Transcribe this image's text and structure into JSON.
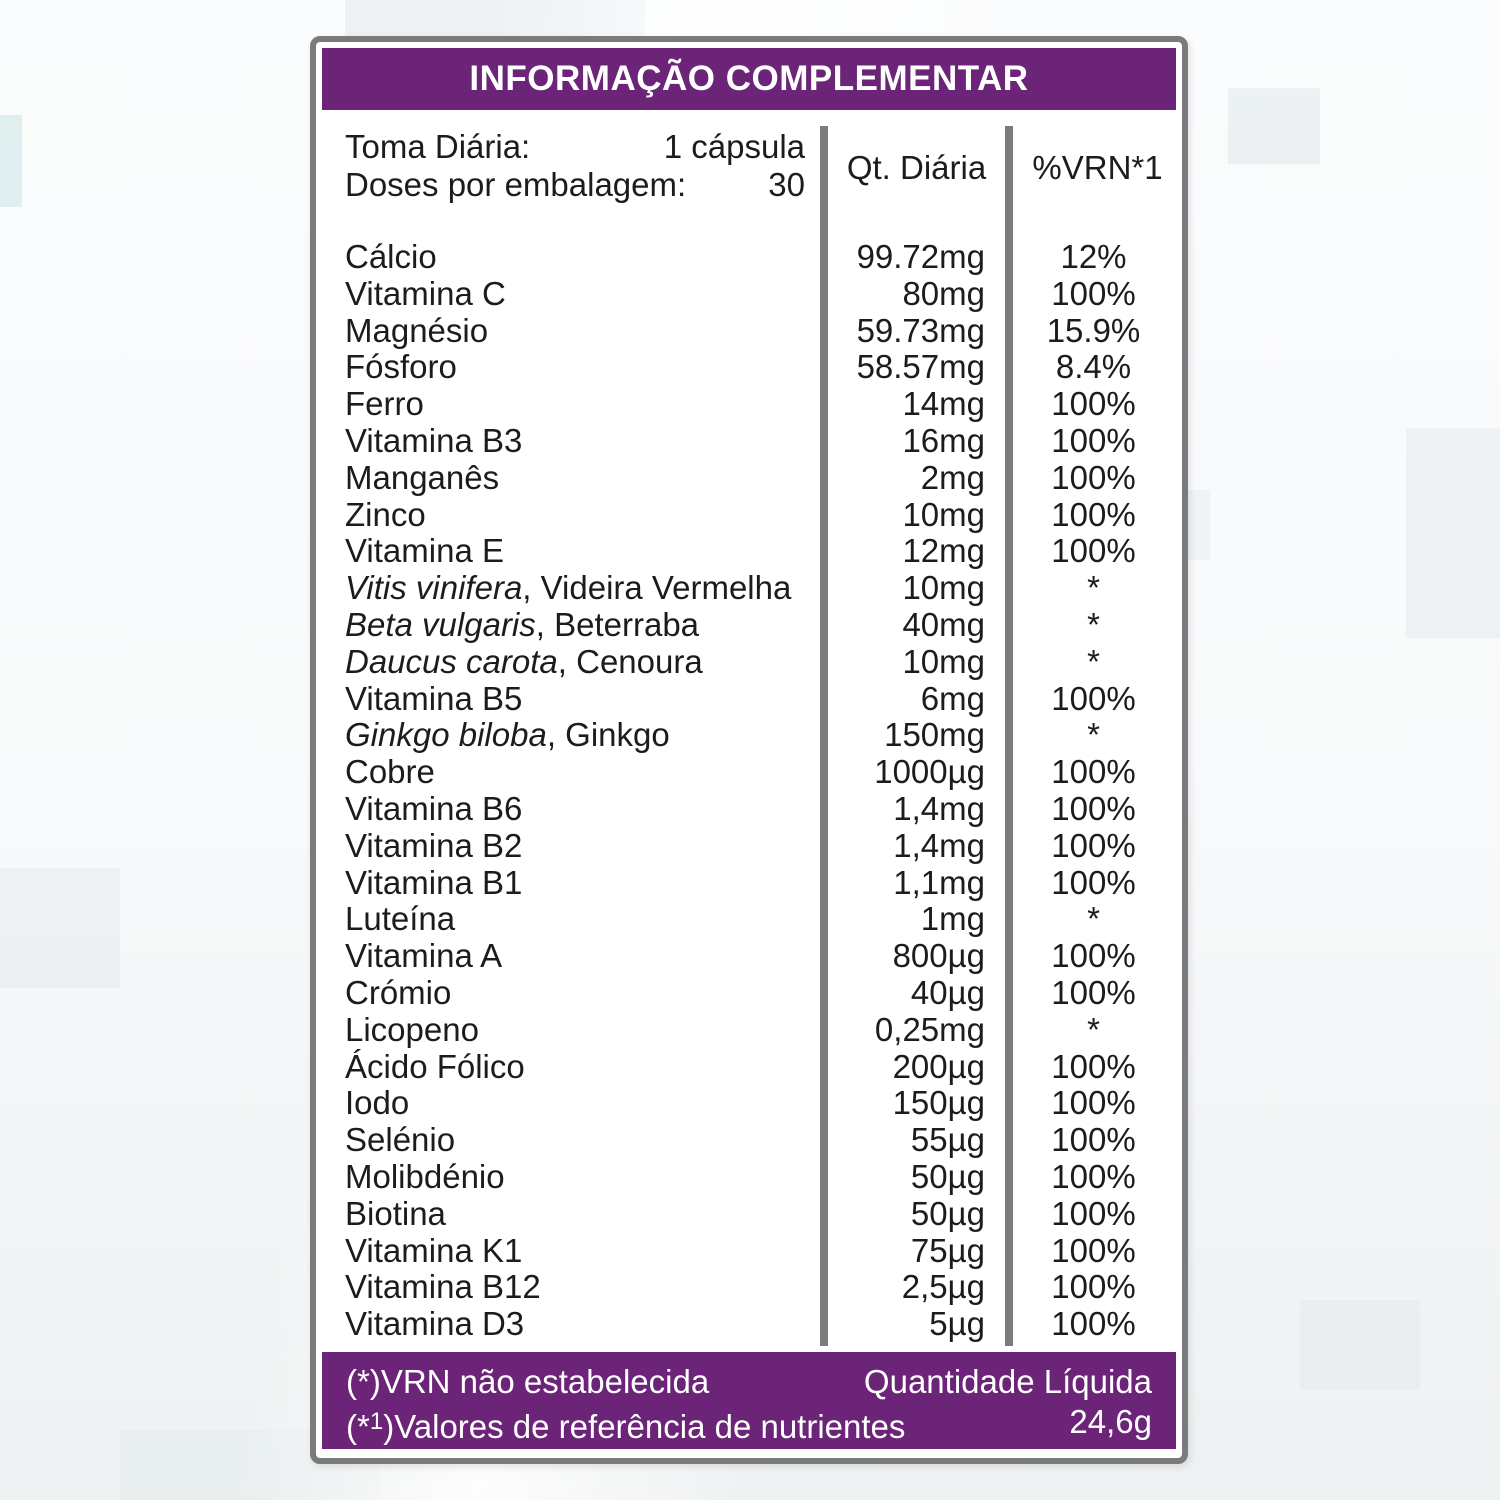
{
  "title": "INFORMAÇÃO COMPLEMENTAR",
  "serving": {
    "toma_label": "Toma Diária:",
    "toma_value": "1 cápsula",
    "doses_label": "Doses por embalagem:",
    "doses_value": "30"
  },
  "columns": {
    "qty": "Qt. Diária",
    "vrn": "%VRN*1"
  },
  "rows": [
    {
      "name_rest": "Cálcio",
      "qty": "99.72mg",
      "vrn": "12%"
    },
    {
      "name_rest": "Vitamina C",
      "qty": "80mg",
      "vrn": "100%"
    },
    {
      "name_rest": "Magnésio",
      "qty": "59.73mg",
      "vrn": "15.9%"
    },
    {
      "name_rest": "Fósforo",
      "qty": "58.57mg",
      "vrn": "8.4%"
    },
    {
      "name_rest": "Ferro",
      "qty": "14mg",
      "vrn": "100%"
    },
    {
      "name_rest": "Vitamina B3",
      "qty": "16mg",
      "vrn": "100%"
    },
    {
      "name_rest": "Manganês",
      "qty": "2mg",
      "vrn": "100%"
    },
    {
      "name_rest": "Zinco",
      "qty": "10mg",
      "vrn": "100%"
    },
    {
      "name_rest": "Vitamina E",
      "qty": "12mg",
      "vrn": "100%"
    },
    {
      "name_italic": "Vitis vinifera",
      "name_rest": ", Videira Vermelha",
      "qty": "10mg",
      "vrn": "*"
    },
    {
      "name_italic": "Beta vulgaris",
      "name_rest": ", Beterraba",
      "qty": "40mg",
      "vrn": "*"
    },
    {
      "name_italic": "Daucus carota",
      "name_rest": ", Cenoura",
      "qty": "10mg",
      "vrn": "*"
    },
    {
      "name_rest": "Vitamina B5",
      "qty": "6mg",
      "vrn": "100%"
    },
    {
      "name_italic": "Ginkgo biloba",
      "name_rest": ", Ginkgo",
      "qty": "150mg",
      "vrn": "*"
    },
    {
      "name_rest": "Cobre",
      "qty": "1000µg",
      "vrn": "100%"
    },
    {
      "name_rest": "Vitamina B6",
      "qty": "1,4mg",
      "vrn": "100%"
    },
    {
      "name_rest": "Vitamina B2",
      "qty": "1,4mg",
      "vrn": "100%"
    },
    {
      "name_rest": "Vitamina B1",
      "qty": "1,1mg",
      "vrn": "100%"
    },
    {
      "name_rest": "Luteína",
      "qty": "1mg",
      "vrn": "*"
    },
    {
      "name_rest": "Vitamina A",
      "qty": "800µg",
      "vrn": "100%"
    },
    {
      "name_rest": "Crómio",
      "qty": "40µg",
      "vrn": "100%"
    },
    {
      "name_rest": "Licopeno",
      "qty": "0,25mg",
      "vrn": "*"
    },
    {
      "name_rest": "Ácido Fólico",
      "qty": "200µg",
      "vrn": "100%"
    },
    {
      "name_rest": "Iodo",
      "qty": "150µg",
      "vrn": "100%"
    },
    {
      "name_rest": "Selénio",
      "qty": "55µg",
      "vrn": "100%"
    },
    {
      "name_rest": "Molibdénio",
      "qty": "50µg",
      "vrn": "100%"
    },
    {
      "name_rest": "Biotina",
      "qty": "50µg",
      "vrn": "100%"
    },
    {
      "name_rest": "Vitamina K1",
      "qty": "75µg",
      "vrn": "100%"
    },
    {
      "name_rest": "Vitamina B12",
      "qty": "2,5µg",
      "vrn": "100%"
    },
    {
      "name_rest": "Vitamina D3",
      "qty": "5µg",
      "vrn": "100%"
    }
  ],
  "footer": {
    "note1": "(*)VRN não estabelecida",
    "note2_prefix": "(*",
    "note2_sup": "1",
    "note2_suffix": ")Valores de referência de nutrientes",
    "net_qty_label": "Quantidade Líquida",
    "net_qty_value": "24,6g"
  },
  "colors": {
    "purple": "#6b2478",
    "frame_gray": "#7b7b7d",
    "text": "#1c1c1c"
  }
}
